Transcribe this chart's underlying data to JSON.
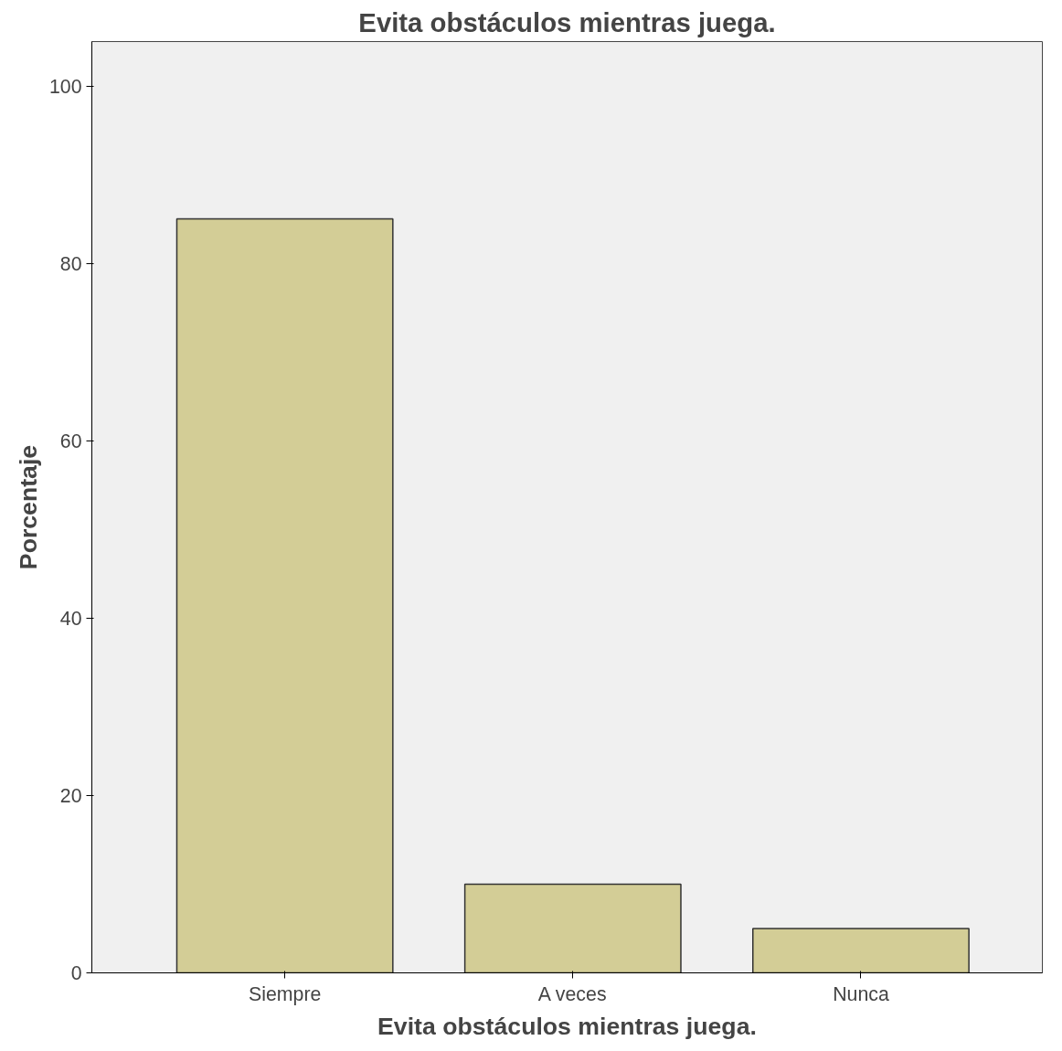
{
  "chart_data": {
    "type": "bar",
    "title": "Evita obstáculos mientras juega.",
    "xlabel": "Evita obstáculos mientras juega.",
    "ylabel": "Porcentaje",
    "categories": [
      "Siempre",
      "A veces",
      "Nunca"
    ],
    "values": [
      85,
      10,
      5
    ],
    "color": "#d3cd96",
    "ylim": [
      0,
      105
    ],
    "yticks": [
      0,
      20,
      40,
      60,
      80,
      100
    ],
    "grid": false
  }
}
